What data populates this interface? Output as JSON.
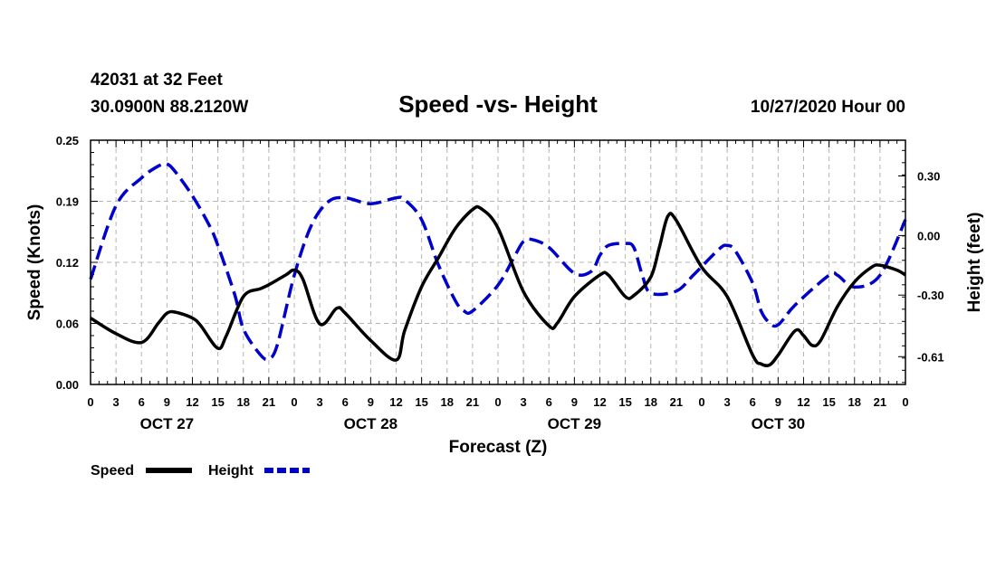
{
  "header": {
    "station": "42031 at 32 Feet",
    "location": "30.0900N 88.2120W",
    "title": "Speed -vs- Height",
    "datetime": "10/27/2020 Hour 00"
  },
  "legend": {
    "speed_label": "Speed",
    "height_label": "Height"
  },
  "chart_data": {
    "type": "line",
    "title": "Speed -vs- Height",
    "xlabel": "Forecast (Z)",
    "ylabel": "Speed (Knots)",
    "y2label": "Height (feet)",
    "x_range_hours": [
      0,
      96
    ],
    "ylim": [
      0,
      0.25
    ],
    "y2lim": [
      -0.75,
      0.48
    ],
    "y_ticks": [
      "0.00",
      "0.06",
      "0.12",
      "0.19",
      "0.25"
    ],
    "y_tick_values": [
      0,
      0.0625,
      0.125,
      0.1875,
      0.25
    ],
    "y2_ticks": [
      "-0.61",
      "-0.30",
      "0.00",
      "0.30"
    ],
    "y2_tick_values": [
      -0.61,
      -0.3,
      0.0,
      0.3
    ],
    "x_tick_labels": [
      "0",
      "3",
      "6",
      "9",
      "12",
      "15",
      "18",
      "21",
      "0",
      "3",
      "6",
      "9",
      "12",
      "15",
      "18",
      "21",
      "0",
      "3",
      "6",
      "9",
      "12",
      "15",
      "18",
      "21",
      "0",
      "3",
      "6",
      "9",
      "12",
      "15",
      "18",
      "21",
      "0"
    ],
    "day_labels": [
      {
        "label": "OCT 27",
        "hour": 9
      },
      {
        "label": "OCT 28",
        "hour": 33
      },
      {
        "label": "OCT 29",
        "hour": 57
      },
      {
        "label": "OCT 30",
        "hour": 81
      }
    ],
    "grid": true,
    "series": [
      {
        "name": "Speed",
        "axis": "left",
        "color": "#000000",
        "style": "solid",
        "points": [
          [
            0,
            0.068
          ],
          [
            3,
            0.052
          ],
          [
            6,
            0.043
          ],
          [
            8,
            0.063
          ],
          [
            9,
            0.073
          ],
          [
            10,
            0.074
          ],
          [
            12,
            0.068
          ],
          [
            13,
            0.06
          ],
          [
            15,
            0.037
          ],
          [
            16,
            0.05
          ],
          [
            18,
            0.09
          ],
          [
            20,
            0.098
          ],
          [
            21,
            0.102
          ],
          [
            23,
            0.112
          ],
          [
            24,
            0.117
          ],
          [
            25,
            0.108
          ],
          [
            27,
            0.062
          ],
          [
            29,
            0.078
          ],
          [
            30,
            0.073
          ],
          [
            33,
            0.045
          ],
          [
            36,
            0.025
          ],
          [
            37,
            0.055
          ],
          [
            39,
            0.1
          ],
          [
            41,
            0.13
          ],
          [
            43,
            0.16
          ],
          [
            45,
            0.179
          ],
          [
            46,
            0.18
          ],
          [
            48,
            0.16
          ],
          [
            51,
            0.095
          ],
          [
            54,
            0.06
          ],
          [
            55,
            0.063
          ],
          [
            57,
            0.09
          ],
          [
            60,
            0.112
          ],
          [
            61,
            0.112
          ],
          [
            63,
            0.09
          ],
          [
            64,
            0.091
          ],
          [
            66,
            0.11
          ],
          [
            67,
            0.14
          ],
          [
            68,
            0.172
          ],
          [
            69,
            0.168
          ],
          [
            72,
            0.12
          ],
          [
            75,
            0.09
          ],
          [
            78,
            0.03
          ],
          [
            79,
            0.021
          ],
          [
            80,
            0.02
          ],
          [
            81,
            0.03
          ],
          [
            83,
            0.055
          ],
          [
            84,
            0.05
          ],
          [
            85,
            0.04
          ],
          [
            86,
            0.045
          ],
          [
            88,
            0.08
          ],
          [
            90,
            0.105
          ],
          [
            92,
            0.12
          ],
          [
            93,
            0.122
          ],
          [
            95,
            0.117
          ],
          [
            96,
            0.112
          ]
        ]
      },
      {
        "name": "Height",
        "axis": "right",
        "color": "#0000cc",
        "style": "dashed",
        "points": [
          [
            0,
            -0.22
          ],
          [
            3,
            0.15
          ],
          [
            6,
            0.29
          ],
          [
            8,
            0.35
          ],
          [
            9,
            0.36
          ],
          [
            10,
            0.32
          ],
          [
            12,
            0.2
          ],
          [
            14,
            0.05
          ],
          [
            15,
            -0.05
          ],
          [
            17,
            -0.3
          ],
          [
            18,
            -0.47
          ],
          [
            20,
            -0.6
          ],
          [
            21,
            -0.62
          ],
          [
            22,
            -0.55
          ],
          [
            24,
            -0.2
          ],
          [
            26,
            0.05
          ],
          [
            28,
            0.17
          ],
          [
            30,
            0.19
          ],
          [
            33,
            0.16
          ],
          [
            36,
            0.19
          ],
          [
            37,
            0.18
          ],
          [
            39,
            0.08
          ],
          [
            41,
            -0.15
          ],
          [
            43,
            -0.33
          ],
          [
            44,
            -0.38
          ],
          [
            45,
            -0.38
          ],
          [
            48,
            -0.25
          ],
          [
            50,
            -0.1
          ],
          [
            51,
            -0.03
          ],
          [
            52,
            -0.02
          ],
          [
            54,
            -0.06
          ],
          [
            57,
            -0.19
          ],
          [
            59,
            -0.18
          ],
          [
            60,
            -0.1
          ],
          [
            61,
            -0.05
          ],
          [
            63,
            -0.04
          ],
          [
            64,
            -0.06
          ],
          [
            65,
            -0.2
          ],
          [
            66,
            -0.29
          ],
          [
            69,
            -0.28
          ],
          [
            71,
            -0.2
          ],
          [
            74,
            -0.07
          ],
          [
            75,
            -0.05
          ],
          [
            76,
            -0.08
          ],
          [
            78,
            -0.24
          ],
          [
            79,
            -0.38
          ],
          [
            80,
            -0.44
          ],
          [
            81,
            -0.45
          ],
          [
            83,
            -0.35
          ],
          [
            87,
            -0.2
          ],
          [
            88,
            -0.2
          ],
          [
            90,
            -0.26
          ],
          [
            93,
            -0.2
          ],
          [
            96,
            0.08
          ]
        ]
      }
    ]
  }
}
